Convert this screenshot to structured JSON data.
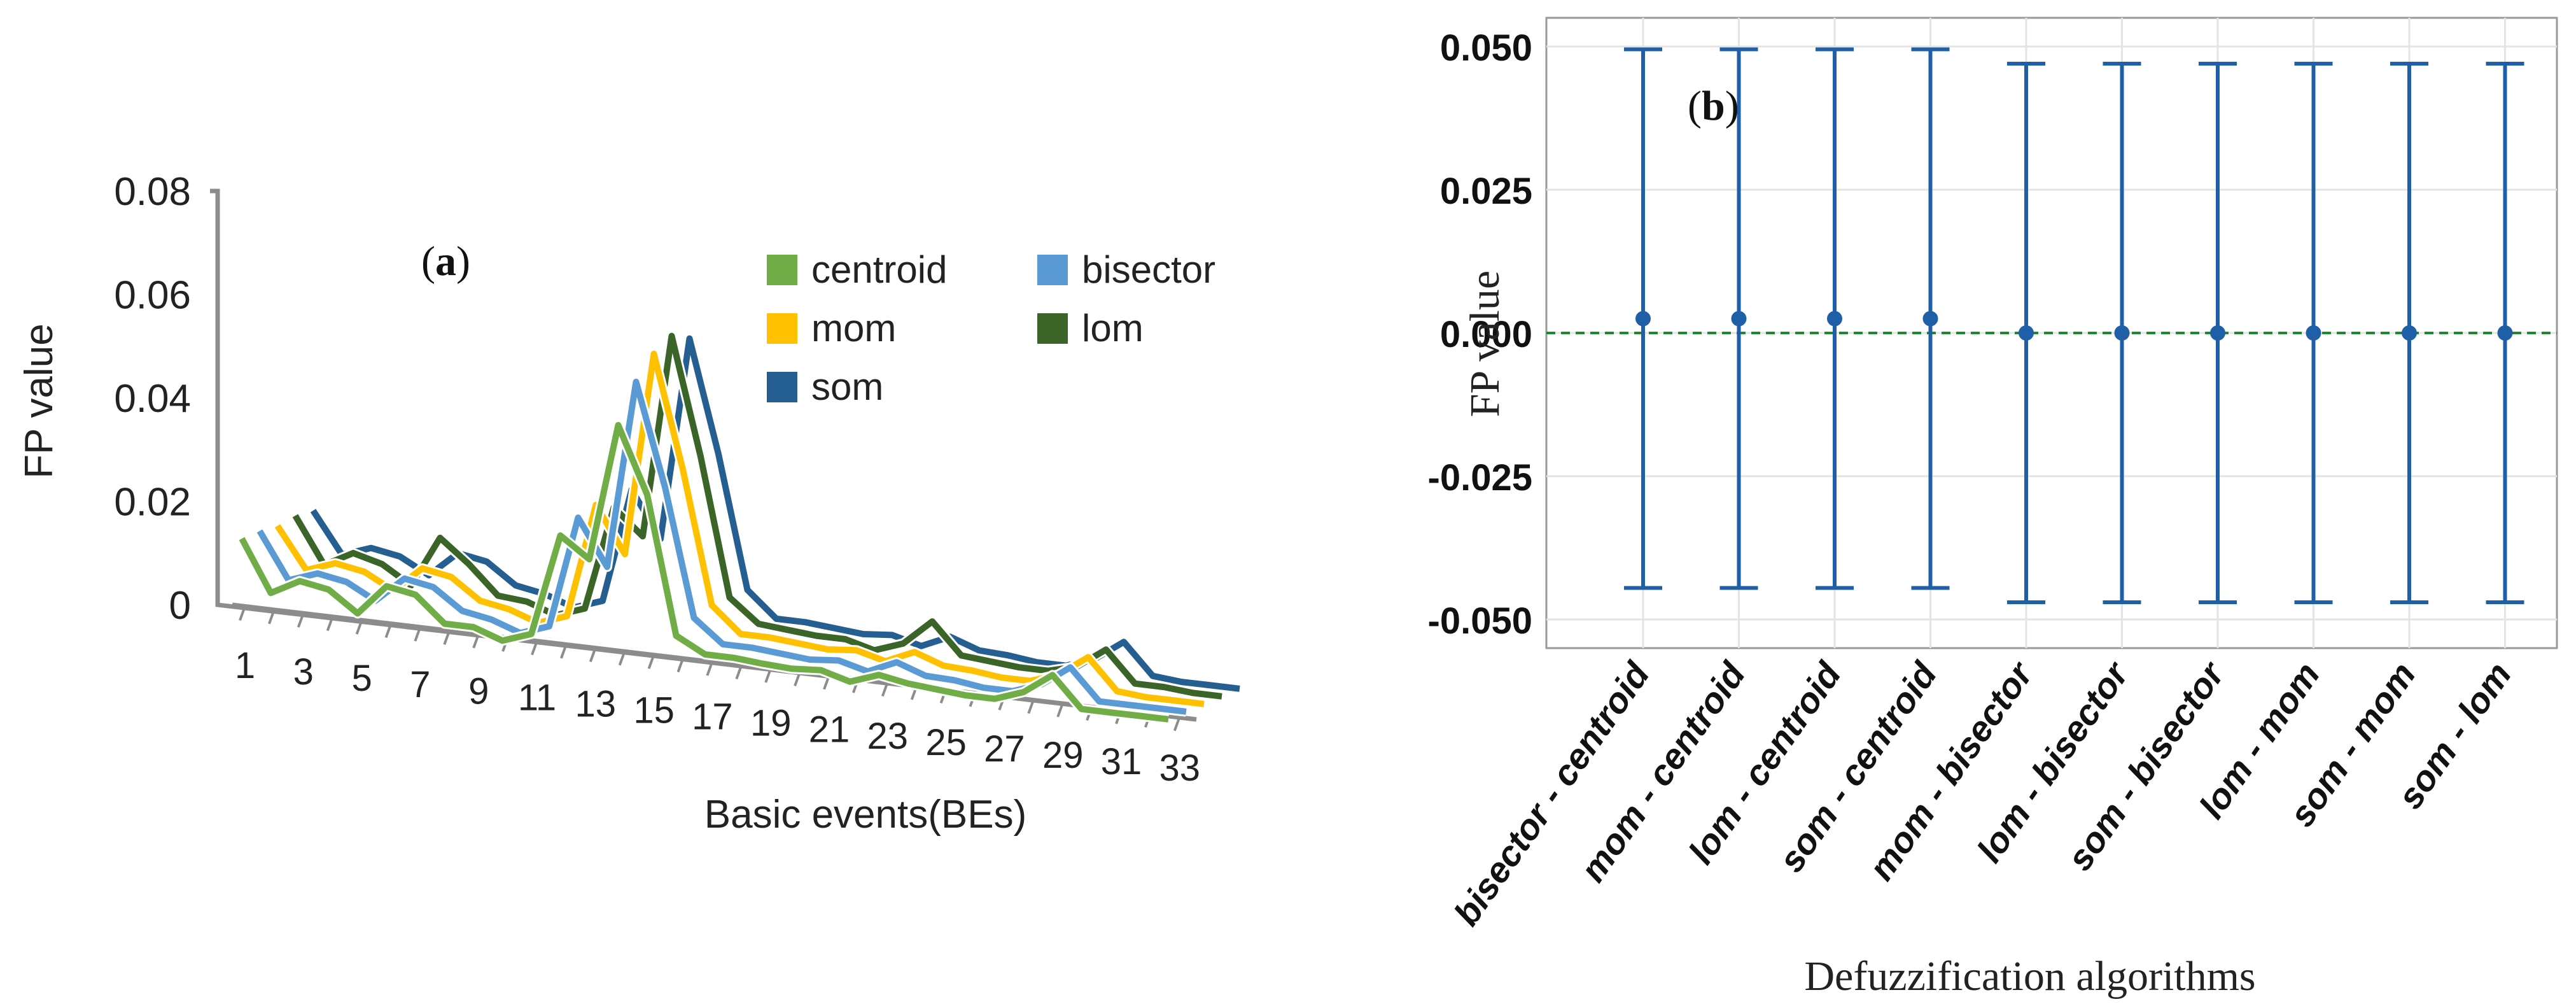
{
  "chart_data": [
    {
      "panel_label": "(a)",
      "type": "line",
      "style": "3d-depth",
      "xlabel": "Basic events(BEs)",
      "ylabel": "FP value",
      "yticks": [
        "0.08",
        "0.06",
        "0.04",
        "0.02",
        "0"
      ],
      "ylim": [
        0,
        0.08
      ],
      "xticks": [
        "1",
        "3",
        "5",
        "7",
        "9",
        "11",
        "13",
        "15",
        "17",
        "19",
        "21",
        "23",
        "25",
        "27",
        "29",
        "31",
        "33"
      ],
      "x": [
        1,
        2,
        3,
        4,
        5,
        6,
        7,
        8,
        9,
        10,
        11,
        12,
        13,
        14,
        15,
        16,
        17,
        18,
        19,
        20,
        21,
        22,
        23,
        24,
        25,
        26,
        27,
        28,
        29,
        30,
        31,
        32,
        33
      ],
      "legend_position": "top-right",
      "series": [
        {
          "name": "centroid",
          "color": "#70ad47",
          "values": [
            0.014,
            0.004,
            0.007,
            0.006,
            0.002,
            0.008,
            0.007,
            0.002,
            0.002,
            0.0,
            0.002,
            0.022,
            0.018,
            0.045,
            0.032,
            0.005,
            0.002,
            0.002,
            0.0015,
            0.0012,
            0.0016,
            0.0,
            0.002,
            0.001,
            0.0005,
            0.0,
            0.0,
            0.002,
            0.006,
            0.0,
            0.0,
            0.0,
            0.0
          ]
        },
        {
          "name": "bisector",
          "color": "#5b9bd5",
          "values": [
            0.014,
            0.005,
            0.007,
            0.006,
            0.003,
            0.008,
            0.007,
            0.003,
            0.002,
            0.0,
            0.002,
            0.024,
            0.015,
            0.052,
            0.032,
            0.007,
            0.0025,
            0.0025,
            0.002,
            0.0015,
            0.002,
            0.0005,
            0.003,
            0.001,
            0.0008,
            0.0,
            0.0,
            0.002,
            0.006,
            0.0,
            0.0,
            0.0,
            0.0
          ]
        },
        {
          "name": "mom",
          "color": "#ffc000",
          "values": [
            0.0135,
            0.0055,
            0.0075,
            0.0065,
            0.0035,
            0.0085,
            0.0075,
            0.0035,
            0.0025,
            0.0005,
            0.0025,
            0.025,
            0.016,
            0.056,
            0.034,
            0.008,
            0.003,
            0.003,
            0.0025,
            0.002,
            0.0025,
            0.001,
            0.0035,
            0.0015,
            0.0012,
            0.0005,
            0.0005,
            0.0025,
            0.0065,
            0.0005,
            0.0,
            0.0,
            0.0
          ]
        },
        {
          "name": "lom",
          "color": "#3b6428",
          "values": [
            0.014,
            0.005,
            0.008,
            0.0065,
            0.003,
            0.013,
            0.0085,
            0.003,
            0.0025,
            0.0005,
            0.0025,
            0.023,
            0.018,
            0.058,
            0.035,
            0.008,
            0.0035,
            0.003,
            0.0025,
            0.0025,
            0.001,
            0.003,
            0.008,
            0.002,
            0.0015,
            0.001,
            0.001,
            0.0025,
            0.0065,
            0.0005,
            0.0005,
            0.0,
            0.0
          ]
        },
        {
          "name": "som",
          "color": "#255e91",
          "values": [
            0.0135,
            0.0055,
            0.0075,
            0.0065,
            0.0035,
            0.0085,
            0.0075,
            0.0035,
            0.0025,
            0.0005,
            0.0025,
            0.025,
            0.016,
            0.056,
            0.034,
            0.008,
            0.003,
            0.003,
            0.0025,
            0.002,
            0.0025,
            0.001,
            0.0035,
            0.0015,
            0.0012,
            0.0005,
            0.0005,
            0.0025,
            0.0065,
            0.0005,
            0.0,
            0.0,
            0.0
          ]
        }
      ]
    },
    {
      "panel_label": "(b)",
      "type": "scatter",
      "style": "error-bars",
      "xlabel": "Defuzzification algorithms",
      "ylabel": "FP value",
      "ylim": [
        -0.055,
        0.055
      ],
      "yticks": [
        "0.050",
        "0.025",
        "0.000",
        "-0.025",
        "-0.050"
      ],
      "ytick_values": [
        0.05,
        0.025,
        0.0,
        -0.025,
        -0.05
      ],
      "categories": [
        "bisector - centroid",
        "mom - centroid",
        "lom - centroid",
        "som - centroid",
        "mom - bisector",
        "lom - bisector",
        "som - bisector",
        "lom - mom",
        "som - mom",
        "som - lom"
      ],
      "values": [
        0.0025,
        0.0025,
        0.0025,
        0.0025,
        0.0,
        0.0,
        0.0,
        0.0,
        0.0,
        0.0
      ],
      "upper": [
        0.0495,
        0.0495,
        0.0495,
        0.0495,
        0.047,
        0.047,
        0.047,
        0.047,
        0.047,
        0.047
      ],
      "lower": [
        -0.0445,
        -0.0445,
        -0.0445,
        -0.0445,
        -0.047,
        -0.047,
        -0.047,
        -0.047,
        -0.047,
        -0.047
      ],
      "reference_line": 0.0,
      "marker_color": "#1f5fa8",
      "reference_color": "#1a8a2a",
      "grid": true
    }
  ]
}
